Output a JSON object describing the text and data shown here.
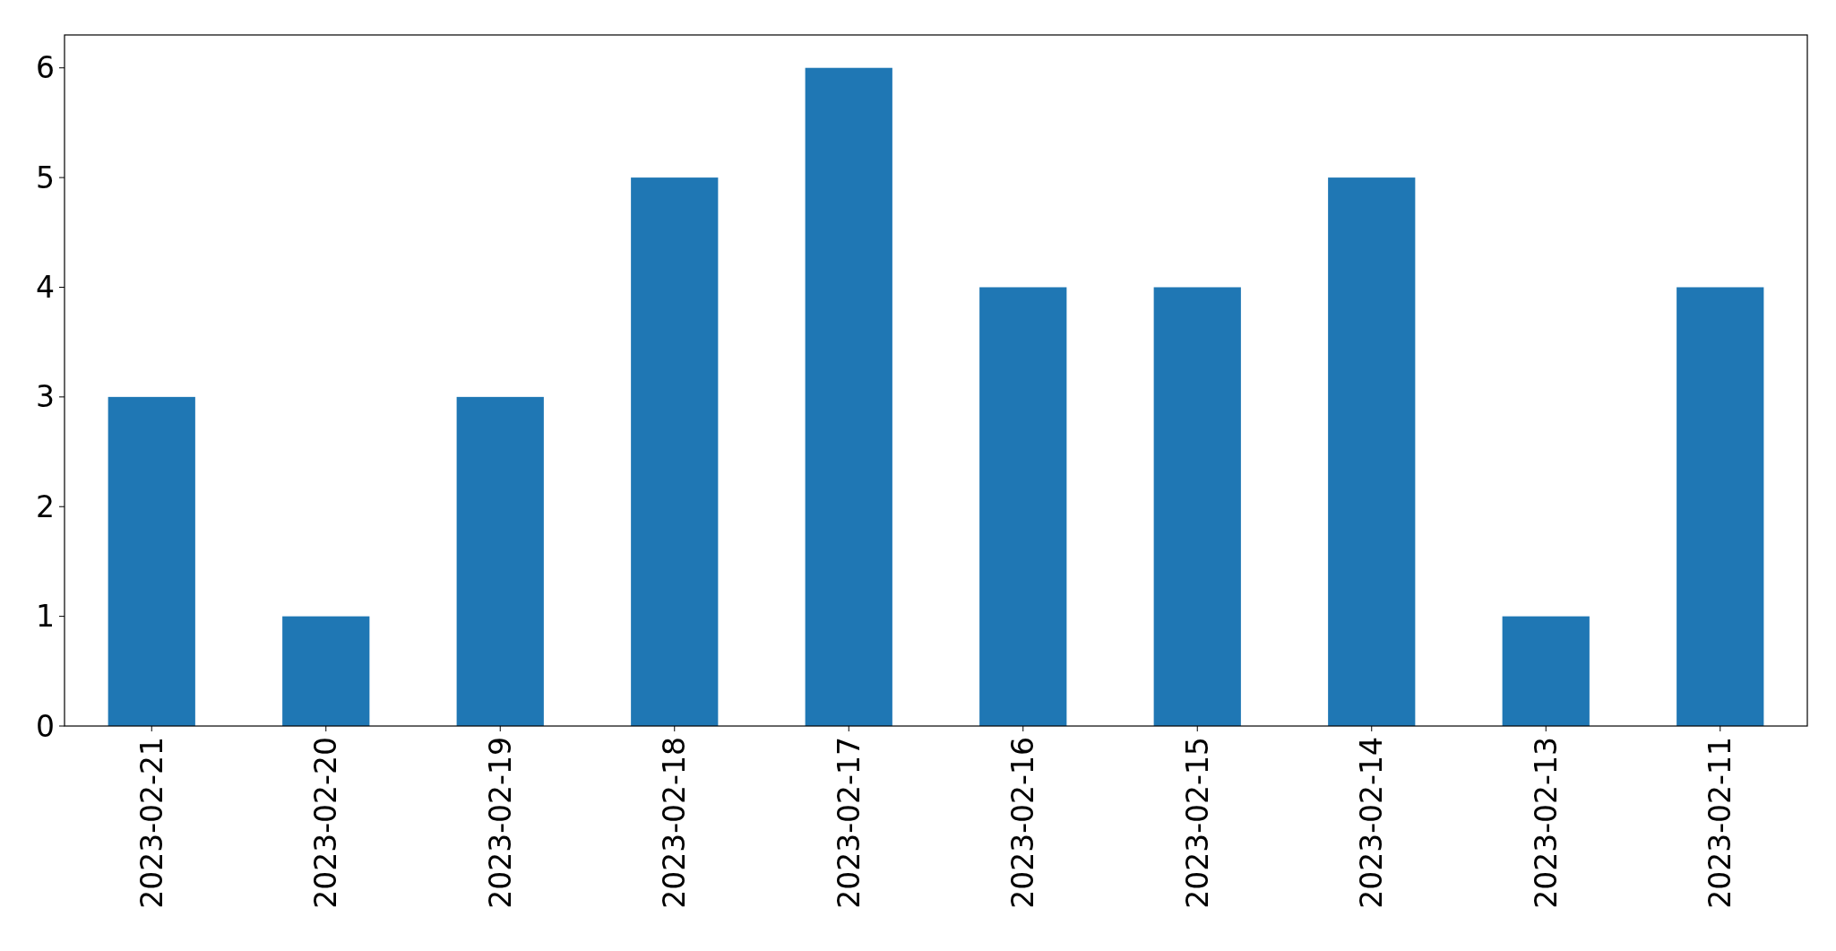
{
  "chart_data": {
    "type": "bar",
    "categories": [
      "2023-02-21",
      "2023-02-20",
      "2023-02-19",
      "2023-02-18",
      "2023-02-17",
      "2023-02-16",
      "2023-02-15",
      "2023-02-14",
      "2023-02-13",
      "2023-02-11"
    ],
    "values": [
      3,
      1,
      3,
      5,
      6,
      4,
      4,
      5,
      1,
      4
    ],
    "color": "#1f77b4",
    "ylim": [
      0,
      6.3
    ],
    "yticks": [
      0,
      1,
      2,
      3,
      4,
      5,
      6
    ],
    "grid": false
  }
}
